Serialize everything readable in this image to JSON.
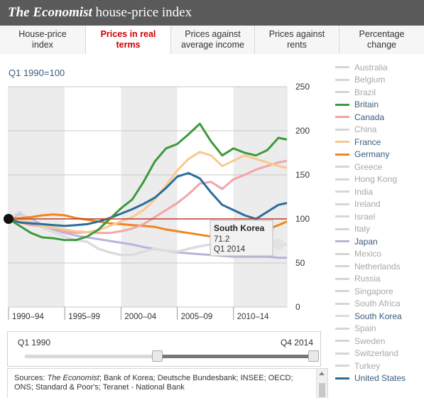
{
  "header": {
    "title_italic": "The Economist",
    "title_rest": " house-price index"
  },
  "tabs": [
    {
      "label": "House-price index",
      "active": false
    },
    {
      "label": "Prices in real terms",
      "active": true
    },
    {
      "label": "Prices against average income",
      "active": false
    },
    {
      "label": "Prices against rents",
      "active": false
    },
    {
      "label": "Percentage change",
      "active": false
    }
  ],
  "subtitle": "Q1 1990=100",
  "legend": [
    {
      "name": "Australia",
      "on": false,
      "color": "#d6d6d6"
    },
    {
      "name": "Belgium",
      "on": false,
      "color": "#d6d6d6"
    },
    {
      "name": "Brazil",
      "on": false,
      "color": "#d6d6d6"
    },
    {
      "name": "Britain",
      "on": true,
      "color": "#3d9a3d"
    },
    {
      "name": "Canada",
      "on": true,
      "color": "#f2a5a5"
    },
    {
      "name": "China",
      "on": false,
      "color": "#d6d6d6"
    },
    {
      "name": "France",
      "on": true,
      "color": "#f9c98f"
    },
    {
      "name": "Germany",
      "on": true,
      "color": "#f0861c"
    },
    {
      "name": "Greece",
      "on": false,
      "color": "#d6d6d6"
    },
    {
      "name": "Hong Kong",
      "on": false,
      "color": "#d6d6d6"
    },
    {
      "name": "India",
      "on": false,
      "color": "#d6d6d6"
    },
    {
      "name": "Ireland",
      "on": false,
      "color": "#d6d6d6"
    },
    {
      "name": "Israel",
      "on": false,
      "color": "#d6d6d6"
    },
    {
      "name": "Italy",
      "on": false,
      "color": "#d6d6d6"
    },
    {
      "name": "Japan",
      "on": true,
      "color": "#b9b4d8"
    },
    {
      "name": "Mexico",
      "on": false,
      "color": "#d6d6d6"
    },
    {
      "name": "Netherlands",
      "on": false,
      "color": "#d6d6d6"
    },
    {
      "name": "Russia",
      "on": false,
      "color": "#d6d6d6"
    },
    {
      "name": "Singapore",
      "on": false,
      "color": "#d6d6d6"
    },
    {
      "name": "South Africa",
      "on": false,
      "color": "#d6d6d6"
    },
    {
      "name": "South Korea",
      "on": true,
      "color": "#dcdcdc"
    },
    {
      "name": "Spain",
      "on": false,
      "color": "#d6d6d6"
    },
    {
      "name": "Sweden",
      "on": false,
      "color": "#d6d6d6"
    },
    {
      "name": "Switzerland",
      "on": false,
      "color": "#d6d6d6"
    },
    {
      "name": "Turkey",
      "on": false,
      "color": "#d6d6d6"
    },
    {
      "name": "United States",
      "on": true,
      "color": "#2a6d9a"
    }
  ],
  "range": {
    "start_label": "Q1 1990",
    "end_label": "Q4 2014",
    "start_value": 1990.0,
    "end_value": 2014.75
  },
  "sources_prefix": "Sources: ",
  "sources_italic": "The Economist",
  "sources_rest": "; Bank of Korea; Deutsche Bundesbank; INSEE; OECD; ONS; Standard & Poor's; Teranet - National Bank",
  "tooltip": {
    "country": "South Korea",
    "value": "71.2",
    "period": "Q1 2014"
  },
  "chart_data": {
    "type": "line",
    "ylim": [
      0,
      250
    ],
    "yticks": [
      0,
      50,
      100,
      150,
      200,
      250
    ],
    "xlim": [
      1990.0,
      2014.75
    ],
    "bands": [
      {
        "label": "1990–94",
        "from": 1990,
        "to": 1995,
        "shaded": true
      },
      {
        "label": "1995–99",
        "from": 1995,
        "to": 2000,
        "shaded": false
      },
      {
        "label": "2000–04",
        "from": 2000,
        "to": 2005,
        "shaded": true
      },
      {
        "label": "2005–09",
        "from": 2005,
        "to": 2010,
        "shaded": false
      },
      {
        "label": "2010–14",
        "from": 2010,
        "to": 2014.75,
        "shaded": true
      }
    ],
    "baseline": 100,
    "baseline_color": "#c0392b",
    "series": [
      {
        "name": "Japan",
        "color": "#b9b4d8",
        "x": [
          1990,
          1991,
          1992,
          1993,
          1994,
          1995,
          1996,
          1997,
          1998,
          1999,
          2000,
          2001,
          2002,
          2003,
          2004,
          2005,
          2006,
          2007,
          2008,
          2009,
          2010,
          2011,
          2012,
          2013,
          2014,
          2014.75
        ],
        "y": [
          100,
          106,
          100,
          93,
          88,
          84,
          81,
          79,
          77,
          75,
          73,
          71,
          68,
          66,
          64,
          62,
          61,
          60,
          59,
          58,
          57,
          57,
          57,
          57,
          56,
          56
        ]
      },
      {
        "name": "South Korea",
        "color": "#dcdcdc",
        "x": [
          1990,
          1991,
          1992,
          1993,
          1994,
          1995,
          1996,
          1997,
          1998,
          1999,
          2000,
          2001,
          2002,
          2003,
          2004,
          2005,
          2006,
          2007,
          2008,
          2009,
          2010,
          2011,
          2012,
          2013,
          2014,
          2014.75
        ],
        "y": [
          100,
          108,
          98,
          90,
          85,
          80,
          76,
          74,
          66,
          62,
          59,
          59,
          63,
          66,
          64,
          63,
          66,
          69,
          71,
          71,
          72,
          73,
          72,
          71,
          71,
          71
        ]
      },
      {
        "name": "Germany",
        "color": "#f0861c",
        "x": [
          1990,
          1991,
          1992,
          1993,
          1994,
          1995,
          1996,
          1997,
          1998,
          1999,
          2000,
          2001,
          2002,
          2003,
          2004,
          2005,
          2006,
          2007,
          2008,
          2009,
          2010,
          2011,
          2012,
          2013,
          2014,
          2014.75
        ],
        "y": [
          100,
          101,
          102,
          104,
          105,
          104,
          101,
          99,
          97,
          95,
          94,
          93,
          92,
          91,
          88,
          86,
          84,
          82,
          80,
          79,
          79,
          81,
          84,
          88,
          93,
          97
        ]
      },
      {
        "name": "Canada",
        "color": "#f2a5a5",
        "x": [
          1990,
          1991,
          1992,
          1993,
          1994,
          1995,
          1996,
          1997,
          1998,
          1999,
          2000,
          2001,
          2002,
          2003,
          2004,
          2005,
          2006,
          2007,
          2008,
          2009,
          2010,
          2011,
          2012,
          2013,
          2014,
          2014.75
        ],
        "y": [
          100,
          96,
          93,
          92,
          90,
          86,
          84,
          85,
          84,
          84,
          86,
          89,
          94,
          102,
          110,
          118,
          128,
          140,
          142,
          134,
          145,
          150,
          156,
          160,
          164,
          166
        ]
      },
      {
        "name": "France",
        "color": "#f9c98f",
        "x": [
          1990,
          1991,
          1992,
          1993,
          1994,
          1995,
          1996,
          1997,
          1998,
          1999,
          2000,
          2001,
          2002,
          2003,
          2004,
          2005,
          2006,
          2007,
          2008,
          2009,
          2010,
          2011,
          2012,
          2013,
          2014,
          2014.75
        ],
        "y": [
          100,
          99,
          96,
          92,
          90,
          88,
          86,
          85,
          87,
          92,
          97,
          102,
          110,
          122,
          138,
          155,
          168,
          176,
          172,
          160,
          166,
          172,
          168,
          164,
          160,
          158
        ]
      },
      {
        "name": "United States",
        "color": "#2a6d9a",
        "x": [
          1990,
          1991,
          1992,
          1993,
          1994,
          1995,
          1996,
          1997,
          1998,
          1999,
          2000,
          2001,
          2002,
          2003,
          2004,
          2005,
          2006,
          2007,
          2008,
          2009,
          2010,
          2011,
          2012,
          2013,
          2014,
          2014.75
        ],
        "y": [
          100,
          96,
          95,
          94,
          93,
          92,
          93,
          94,
          97,
          101,
          106,
          111,
          117,
          124,
          135,
          148,
          152,
          146,
          130,
          116,
          110,
          104,
          100,
          108,
          116,
          118
        ]
      },
      {
        "name": "Britain",
        "color": "#3d9a3d",
        "x": [
          1990,
          1991,
          1992,
          1993,
          1994,
          1995,
          1996,
          1997,
          1998,
          1999,
          2000,
          2001,
          2002,
          2003,
          2004,
          2005,
          2006,
          2007,
          2008,
          2009,
          2010,
          2011,
          2012,
          2013,
          2014,
          2014.75
        ],
        "y": [
          100,
          92,
          84,
          79,
          78,
          76,
          76,
          80,
          88,
          100,
          112,
          122,
          142,
          165,
          180,
          185,
          196,
          208,
          188,
          172,
          180,
          175,
          172,
          178,
          192,
          190
        ]
      }
    ],
    "highlight": {
      "series": "South Korea",
      "x": 2014.0,
      "y": 71.2
    },
    "start_marker": {
      "x": 1990.0,
      "y": 100
    }
  }
}
